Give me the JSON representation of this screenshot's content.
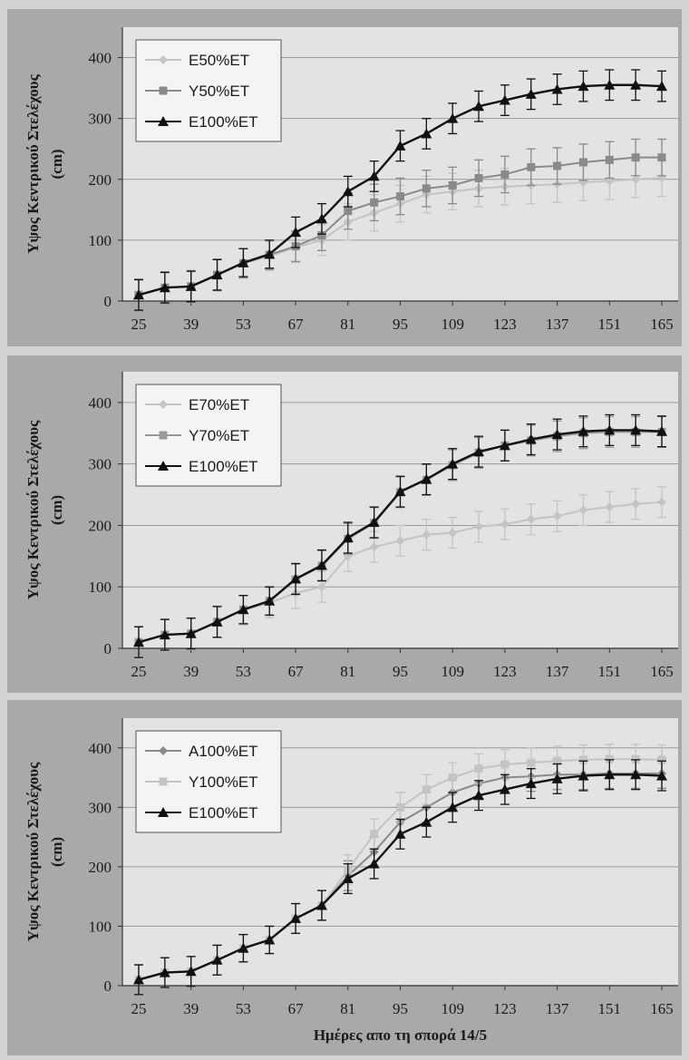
{
  "chart_data": [
    {
      "type": "line",
      "ylabel": "Υψος Κεντρικού Στελέχους (cm)",
      "xlabel": "",
      "ylim": [
        0,
        450
      ],
      "yticks": [
        0,
        100,
        200,
        300,
        400
      ],
      "xticks": [
        25,
        39,
        53,
        67,
        81,
        95,
        109,
        123,
        137,
        151,
        165
      ],
      "legend_position": "top-left",
      "grid": true,
      "x": [
        25,
        32,
        39,
        46,
        53,
        60,
        67,
        74,
        81,
        88,
        95,
        102,
        109,
        116,
        123,
        130,
        137,
        144,
        151,
        158,
        165
      ],
      "series": [
        {
          "name": "E50%ET",
          "color": "#c4c4c4",
          "marker": "diamond",
          "values": [
            10,
            22,
            24,
            43,
            62,
            74,
            88,
            100,
            130,
            145,
            160,
            175,
            180,
            185,
            188,
            190,
            192,
            195,
            197,
            200,
            202
          ],
          "errors": [
            26,
            26,
            26,
            26,
            24,
            24,
            25,
            25,
            30,
            30,
            30,
            30,
            30,
            30,
            30,
            30,
            30,
            30,
            30,
            30,
            30
          ]
        },
        {
          "name": "Y50%ET",
          "color": "#8a8a8a",
          "marker": "square",
          "values": [
            10,
            22,
            24,
            43,
            62,
            76,
            90,
            108,
            148,
            162,
            172,
            185,
            190,
            202,
            208,
            220,
            222,
            228,
            232,
            236,
            236
          ],
          "errors": [
            26,
            26,
            26,
            26,
            24,
            24,
            25,
            25,
            30,
            30,
            30,
            30,
            30,
            30,
            30,
            30,
            30,
            30,
            30,
            30,
            30
          ]
        },
        {
          "name": "E100%ET",
          "color": "#111111",
          "marker": "triangle",
          "values": [
            10,
            22,
            24,
            43,
            63,
            77,
            113,
            135,
            180,
            205,
            255,
            275,
            300,
            320,
            330,
            340,
            348,
            353,
            355,
            355,
            353
          ],
          "errors": [
            25,
            25,
            25,
            25,
            23,
            23,
            25,
            25,
            25,
            25,
            25,
            25,
            25,
            25,
            25,
            25,
            25,
            25,
            25,
            25,
            25
          ]
        }
      ]
    },
    {
      "type": "line",
      "ylabel": "Υψος Κεντρικού Στελέχους (cm)",
      "xlabel": "",
      "ylim": [
        0,
        450
      ],
      "yticks": [
        0,
        100,
        200,
        300,
        400
      ],
      "xticks": [
        25,
        39,
        53,
        67,
        81,
        95,
        109,
        123,
        137,
        151,
        165
      ],
      "legend_position": "top-left",
      "grid": true,
      "x": [
        25,
        32,
        39,
        46,
        53,
        60,
        67,
        74,
        81,
        88,
        95,
        102,
        109,
        116,
        123,
        130,
        137,
        144,
        151,
        158,
        165
      ],
      "series": [
        {
          "name": "E70%ET",
          "color": "#c4c4c4",
          "marker": "diamond",
          "values": [
            10,
            22,
            24,
            43,
            62,
            74,
            90,
            100,
            150,
            165,
            175,
            185,
            188,
            198,
            202,
            210,
            215,
            225,
            230,
            235,
            238
          ],
          "errors": [
            26,
            26,
            26,
            26,
            24,
            24,
            25,
            25,
            25,
            25,
            25,
            25,
            25,
            25,
            25,
            25,
            25,
            25,
            25,
            25,
            25
          ]
        },
        {
          "name": "Y70%ET",
          "color": "#9a9a9a",
          "marker": "square",
          "values": [
            10,
            22,
            24,
            43,
            63,
            77,
            112,
            134,
            178,
            204,
            254,
            274,
            298,
            318,
            330,
            338,
            345,
            350,
            352,
            352,
            352
          ],
          "errors": [
            25,
            25,
            25,
            25,
            23,
            23,
            25,
            25,
            25,
            25,
            25,
            25,
            25,
            25,
            25,
            25,
            25,
            25,
            25,
            25,
            25
          ]
        },
        {
          "name": "E100%ET",
          "color": "#111111",
          "marker": "triangle",
          "values": [
            10,
            22,
            24,
            43,
            63,
            77,
            113,
            135,
            180,
            205,
            255,
            275,
            300,
            320,
            330,
            340,
            348,
            353,
            355,
            355,
            353
          ],
          "errors": [
            25,
            25,
            25,
            25,
            23,
            23,
            25,
            25,
            25,
            25,
            25,
            25,
            25,
            25,
            25,
            25,
            25,
            25,
            25,
            25,
            25
          ]
        }
      ]
    },
    {
      "type": "line",
      "ylabel": "Υψος Κεντρικού Στελέχους (cm)",
      "xlabel": "Ημέρες απο τη σπορά 14/5",
      "ylim": [
        0,
        450
      ],
      "yticks": [
        0,
        100,
        200,
        300,
        400
      ],
      "xticks": [
        25,
        39,
        53,
        67,
        81,
        95,
        109,
        123,
        137,
        151,
        165
      ],
      "legend_position": "top-left",
      "grid": true,
      "x": [
        25,
        32,
        39,
        46,
        53,
        60,
        67,
        74,
        81,
        88,
        95,
        102,
        109,
        116,
        123,
        130,
        137,
        144,
        151,
        158,
        165
      ],
      "series": [
        {
          "name": "A100%ET",
          "color": "#8a8a8a",
          "marker": "diamond",
          "values": [
            10,
            22,
            24,
            43,
            63,
            77,
            113,
            135,
            185,
            225,
            275,
            300,
            325,
            340,
            350,
            352,
            355,
            355,
            357,
            357,
            357
          ],
          "errors": [
            25,
            25,
            25,
            25,
            23,
            23,
            25,
            25,
            25,
            25,
            25,
            25,
            25,
            25,
            25,
            25,
            25,
            25,
            25,
            25,
            25
          ]
        },
        {
          "name": "Y100%ET",
          "color": "#c4c4c4",
          "marker": "square",
          "values": [
            10,
            22,
            24,
            43,
            63,
            77,
            113,
            135,
            195,
            255,
            300,
            330,
            350,
            365,
            372,
            375,
            378,
            380,
            381,
            381,
            380
          ],
          "errors": [
            25,
            25,
            25,
            25,
            23,
            23,
            25,
            25,
            25,
            25,
            25,
            25,
            25,
            25,
            25,
            25,
            25,
            25,
            25,
            25,
            25
          ]
        },
        {
          "name": "E100%ET",
          "color": "#111111",
          "marker": "triangle",
          "values": [
            10,
            22,
            24,
            43,
            63,
            77,
            113,
            135,
            180,
            205,
            255,
            275,
            300,
            320,
            330,
            340,
            348,
            353,
            355,
            355,
            353
          ],
          "errors": [
            25,
            25,
            25,
            25,
            23,
            23,
            25,
            25,
            25,
            25,
            25,
            25,
            25,
            25,
            25,
            25,
            25,
            25,
            25,
            25,
            25
          ]
        }
      ]
    }
  ]
}
